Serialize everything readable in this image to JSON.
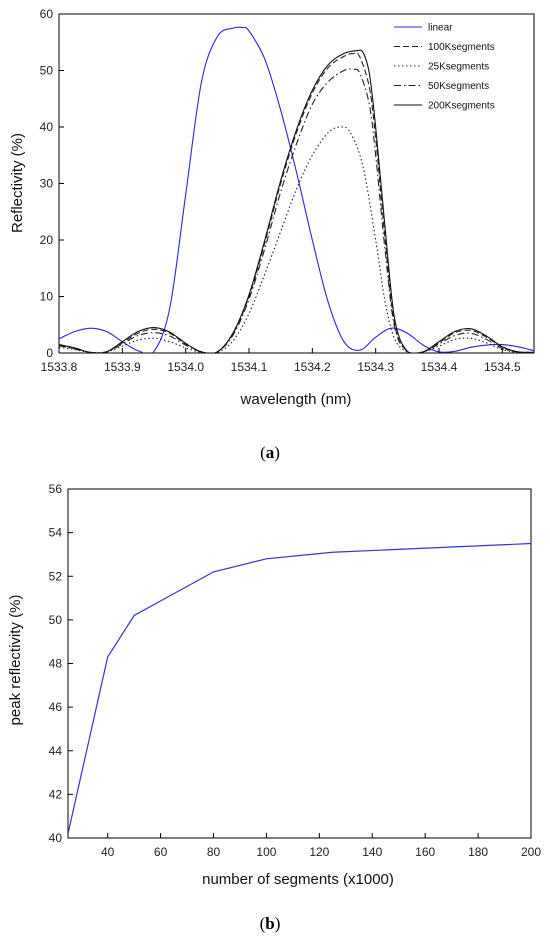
{
  "chart_data": [
    {
      "type": "line",
      "panel": "a",
      "caption": {
        "open": "(",
        "letter": "a",
        "close": ")"
      },
      "xlabel": "wavelength (nm)",
      "ylabel": "Reflectivity (%)",
      "xlim": [
        1533.8,
        1534.55
      ],
      "ylim": [
        0,
        60
      ],
      "xticks": [
        "1533.8",
        "1533.9",
        "1534.0",
        "1534.1",
        "1534.2",
        "1534.3",
        "1534.4",
        "1534.5"
      ],
      "yticks": [
        "0",
        "10",
        "20",
        "30",
        "40",
        "50",
        "60"
      ],
      "legend_position": "top-right",
      "series": [
        {
          "name": "linear",
          "color": "#2626d9",
          "dash": "solid",
          "x": [
            1533.8,
            1533.825,
            1533.85,
            1533.875,
            1533.9,
            1533.925,
            1533.95,
            1533.975,
            1534.0,
            1534.025,
            1534.05,
            1534.075,
            1534.09,
            1534.1,
            1534.125,
            1534.15,
            1534.175,
            1534.2,
            1534.225,
            1534.25,
            1534.275,
            1534.3,
            1534.325,
            1534.35,
            1534.375,
            1534.4,
            1534.425,
            1534.45,
            1534.475,
            1534.5,
            1534.525,
            1534.55
          ],
          "y": [
            2.5,
            3.8,
            4.4,
            3.8,
            2.0,
            0.4,
            0.3,
            8.0,
            28.0,
            48.0,
            56.0,
            57.5,
            57.6,
            57.0,
            52.0,
            43.0,
            32.0,
            20.0,
            9.0,
            2.0,
            0.5,
            2.8,
            4.4,
            3.5,
            1.4,
            0.2,
            0.3,
            1.0,
            1.4,
            1.5,
            1.1,
            0.4
          ]
        },
        {
          "name": "100Ksegments",
          "color": "#222222",
          "dash": "dashed",
          "x": [
            1533.8,
            1533.825,
            1533.85,
            1533.875,
            1533.9,
            1533.925,
            1533.95,
            1533.975,
            1534.0,
            1534.025,
            1534.05,
            1534.075,
            1534.1,
            1534.125,
            1534.15,
            1534.175,
            1534.2,
            1534.225,
            1534.25,
            1534.265,
            1534.275,
            1534.29,
            1534.3,
            1534.315,
            1534.33,
            1534.35,
            1534.375,
            1534.4,
            1534.425,
            1534.45,
            1534.475,
            1534.5,
            1534.525,
            1534.55
          ],
          "y": [
            1.4,
            0.8,
            0.1,
            0.2,
            1.8,
            3.5,
            4.2,
            3.5,
            1.6,
            0.2,
            0.2,
            3.5,
            10.0,
            19.5,
            30.0,
            39.0,
            46.0,
            50.5,
            52.5,
            53.0,
            52.4,
            47.0,
            38.0,
            20.0,
            5.0,
            0.3,
            0.2,
            1.8,
            3.6,
            4.0,
            2.8,
            1.0,
            0.2,
            0.1
          ]
        },
        {
          "name": "25Ksegments",
          "color": "#222222",
          "dash": "dotted",
          "x": [
            1533.8,
            1533.825,
            1533.85,
            1533.875,
            1533.9,
            1533.925,
            1533.95,
            1533.975,
            1534.0,
            1534.025,
            1534.05,
            1534.075,
            1534.1,
            1534.125,
            1534.15,
            1534.175,
            1534.2,
            1534.225,
            1534.245,
            1534.26,
            1534.28,
            1534.3,
            1534.315,
            1534.33,
            1534.35,
            1534.375,
            1534.4,
            1534.425,
            1534.45,
            1534.475,
            1534.5,
            1534.525,
            1534.55
          ],
          "y": [
            1.0,
            0.6,
            0.1,
            0.2,
            1.2,
            2.3,
            2.6,
            2.0,
            0.9,
            0.1,
            0.1,
            2.2,
            7.0,
            14.0,
            21.5,
            29.0,
            35.0,
            39.0,
            40.0,
            39.0,
            33.0,
            20.0,
            9.0,
            2.5,
            0.2,
            0.2,
            1.2,
            2.4,
            2.6,
            1.8,
            0.6,
            0.1,
            0.1
          ]
        },
        {
          "name": "50Ksegments",
          "color": "#222222",
          "dash": "dashdot",
          "x": [
            1533.8,
            1533.825,
            1533.85,
            1533.875,
            1533.9,
            1533.925,
            1533.95,
            1533.975,
            1534.0,
            1534.025,
            1534.05,
            1534.075,
            1534.1,
            1534.125,
            1534.15,
            1534.175,
            1534.2,
            1534.225,
            1534.25,
            1534.265,
            1534.275,
            1534.29,
            1534.3,
            1534.315,
            1534.33,
            1534.35,
            1534.375,
            1534.4,
            1534.425,
            1534.45,
            1534.475,
            1534.5,
            1534.525,
            1534.55
          ],
          "y": [
            1.3,
            0.7,
            0.1,
            0.2,
            1.6,
            3.1,
            3.6,
            3.0,
            1.4,
            0.2,
            0.2,
            3.2,
            9.5,
            18.5,
            28.5,
            37.0,
            44.0,
            48.0,
            50.0,
            50.2,
            49.5,
            44.0,
            35.0,
            18.0,
            4.5,
            0.3,
            0.2,
            1.6,
            3.1,
            3.5,
            2.4,
            0.8,
            0.2,
            0.1
          ]
        },
        {
          "name": "200Ksegments",
          "color": "#111111",
          "dash": "solid",
          "x": [
            1533.8,
            1533.825,
            1533.85,
            1533.875,
            1533.9,
            1533.925,
            1533.95,
            1533.975,
            1534.0,
            1534.025,
            1534.05,
            1534.075,
            1534.1,
            1534.125,
            1534.15,
            1534.175,
            1534.2,
            1534.225,
            1534.25,
            1534.27,
            1534.28,
            1534.29,
            1534.3,
            1534.315,
            1534.33,
            1534.35,
            1534.375,
            1534.4,
            1534.425,
            1534.45,
            1534.475,
            1534.5,
            1534.525,
            1534.55
          ],
          "y": [
            1.5,
            0.9,
            0.1,
            0.2,
            2.0,
            3.8,
            4.5,
            3.7,
            1.7,
            0.2,
            0.2,
            3.6,
            10.3,
            20.0,
            30.5,
            39.5,
            46.5,
            51.0,
            53.0,
            53.5,
            53.2,
            49.5,
            40.0,
            22.0,
            6.0,
            0.3,
            0.2,
            2.0,
            3.8,
            4.3,
            3.0,
            1.1,
            0.2,
            0.1
          ]
        }
      ]
    },
    {
      "type": "line",
      "panel": "b",
      "caption": {
        "open": "(",
        "letter": "b",
        "close": ")"
      },
      "xlabel": "number of segments (x1000)",
      "ylabel": "peak reflectivity (%)",
      "xlim": [
        25,
        200
      ],
      "ylim": [
        40,
        56
      ],
      "xticks": [
        "40",
        "60",
        "80",
        "100",
        "120",
        "140",
        "160",
        "180",
        "200"
      ],
      "yticks": [
        "40",
        "42",
        "44",
        "46",
        "48",
        "50",
        "52",
        "54",
        "56"
      ],
      "series": [
        {
          "color": "#3333cc",
          "dash": "solid",
          "x": [
            25,
            40,
            50,
            80,
            100,
            125,
            200
          ],
          "y": [
            40.2,
            48.3,
            50.2,
            52.2,
            52.8,
            53.1,
            53.5
          ]
        }
      ]
    }
  ]
}
